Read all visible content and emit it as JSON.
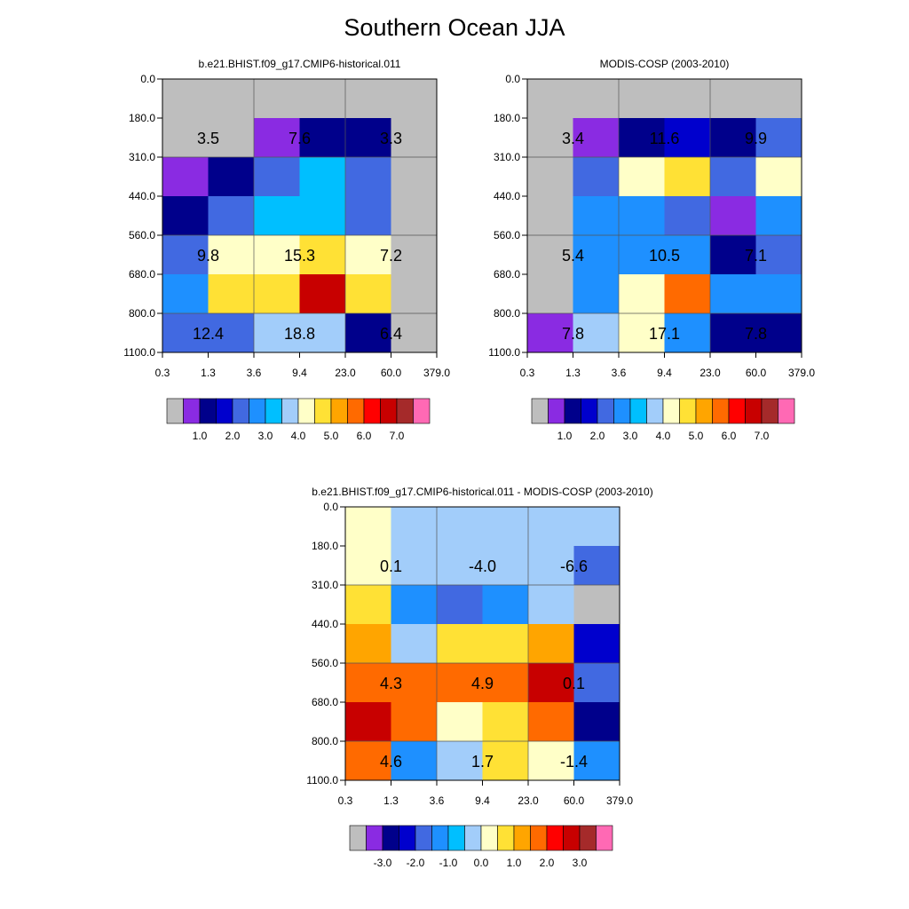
{
  "title": "Southern Ocean JJA",
  "colors": {
    "cb_abs": [
      "#bebebe",
      "#8a2be2",
      "#00008b",
      "#0000cd",
      "#4169e1",
      "#1e90ff",
      "#00bfff",
      "#a2cdfa",
      "#ffffc8",
      "#ffe135",
      "#ffa500",
      "#ff6a00",
      "#ff0000",
      "#c80000",
      "#a52a2a",
      "#ff69b4"
    ],
    "cb_diff": [
      "#bebebe",
      "#8a2be2",
      "#00008b",
      "#0000cd",
      "#4169e1",
      "#1e90ff",
      "#00bfff",
      "#a2cdfa",
      "#ffffc8",
      "#ffe135",
      "#ffa500",
      "#ff6a00",
      "#ff0000",
      "#c80000",
      "#a52a2a",
      "#ff69b4"
    ]
  },
  "chart_data": [
    {
      "type": "heatmap",
      "id": "model",
      "title": "b.e21.BHIST.f09_g17.CMIP6-historical.011",
      "x_ticks": [
        "0.3",
        "1.3",
        "3.6",
        "9.4",
        "23.0",
        "60.0",
        "379.0"
      ],
      "y_ticks": [
        "0.0",
        "180.0",
        "310.0",
        "440.0",
        "560.0",
        "680.0",
        "800.0",
        "1100.0"
      ],
      "cells": [
        [
          0,
          0,
          0,
          0,
          0,
          0
        ],
        [
          0,
          0,
          1,
          2,
          2,
          0
        ],
        [
          1,
          2,
          4,
          6,
          4,
          0
        ],
        [
          2,
          4,
          6,
          6,
          4,
          0
        ],
        [
          4,
          8,
          8,
          9,
          8,
          0
        ],
        [
          5,
          9,
          9,
          13,
          9,
          0
        ],
        [
          4,
          4,
          7,
          7,
          2,
          0
        ]
      ],
      "labels": [
        {
          "text": "3.5",
          "col": 0,
          "row": 1
        },
        {
          "text": "7.6",
          "col": 2,
          "row": 1
        },
        {
          "text": "3.3",
          "col": 4,
          "row": 1
        },
        {
          "text": "9.8",
          "col": 0,
          "row": 4
        },
        {
          "text": "15.3",
          "col": 2,
          "row": 4
        },
        {
          "text": "7.2",
          "col": 4,
          "row": 4
        },
        {
          "text": "12.4",
          "col": 0,
          "row": 6
        },
        {
          "text": "18.8",
          "col": 2,
          "row": 6
        },
        {
          "text": "6.4",
          "col": 4,
          "row": 6
        }
      ],
      "colorbar_labels": [
        "1.0",
        "2.0",
        "3.0",
        "4.0",
        "5.0",
        "6.0",
        "7.0"
      ]
    },
    {
      "type": "heatmap",
      "id": "obs",
      "title": "MODIS-COSP (2003-2010)",
      "x_ticks": [
        "0.3",
        "1.3",
        "3.6",
        "9.4",
        "23.0",
        "60.0",
        "379.0"
      ],
      "y_ticks": [
        "0.0",
        "180.0",
        "310.0",
        "440.0",
        "560.0",
        "680.0",
        "800.0",
        "1100.0"
      ],
      "cells": [
        [
          0,
          0,
          0,
          0,
          0,
          0
        ],
        [
          0,
          1,
          2,
          3,
          2,
          4
        ],
        [
          0,
          4,
          8,
          9,
          4,
          8
        ],
        [
          0,
          5,
          5,
          4,
          1,
          5
        ],
        [
          0,
          5,
          5,
          5,
          2,
          4
        ],
        [
          0,
          5,
          8,
          11,
          5,
          5
        ],
        [
          1,
          7,
          8,
          5,
          2,
          2
        ]
      ],
      "labels": [
        {
          "text": "3.4",
          "col": 0,
          "row": 1
        },
        {
          "text": "11.6",
          "col": 2,
          "row": 1
        },
        {
          "text": "9.9",
          "col": 4,
          "row": 1
        },
        {
          "text": "5.4",
          "col": 0,
          "row": 4
        },
        {
          "text": "10.5",
          "col": 2,
          "row": 4
        },
        {
          "text": "7.1",
          "col": 4,
          "row": 4
        },
        {
          "text": "7.8",
          "col": 0,
          "row": 6
        },
        {
          "text": "17.1",
          "col": 2,
          "row": 6
        },
        {
          "text": "7.8",
          "col": 4,
          "row": 6
        }
      ],
      "colorbar_labels": [
        "1.0",
        "2.0",
        "3.0",
        "4.0",
        "5.0",
        "6.0",
        "7.0"
      ]
    },
    {
      "type": "heatmap",
      "id": "diff",
      "title": "b.e21.BHIST.f09_g17.CMIP6-historical.011 - MODIS-COSP (2003-2010)",
      "x_ticks": [
        "0.3",
        "1.3",
        "3.6",
        "9.4",
        "23.0",
        "60.0",
        "379.0"
      ],
      "y_ticks": [
        "0.0",
        "180.0",
        "310.0",
        "440.0",
        "560.0",
        "680.0",
        "800.0",
        "1100.0"
      ],
      "cells": [
        [
          8,
          7,
          7,
          7,
          7,
          7
        ],
        [
          8,
          7,
          7,
          7,
          7,
          4
        ],
        [
          9,
          5,
          4,
          5,
          7,
          0
        ],
        [
          10,
          7,
          9,
          9,
          10,
          3
        ],
        [
          11,
          11,
          11,
          11,
          13,
          4
        ],
        [
          13,
          11,
          8,
          9,
          11,
          2
        ],
        [
          11,
          5,
          7,
          9,
          8,
          5
        ]
      ],
      "labels": [
        {
          "text": "0.1",
          "col": 0,
          "row": 1
        },
        {
          "text": "-4.0",
          "col": 2,
          "row": 1
        },
        {
          "text": "-6.6",
          "col": 4,
          "row": 1
        },
        {
          "text": "4.3",
          "col": 0,
          "row": 4
        },
        {
          "text": "4.9",
          "col": 2,
          "row": 4
        },
        {
          "text": "0.1",
          "col": 4,
          "row": 4
        },
        {
          "text": "4.6",
          "col": 0,
          "row": 6
        },
        {
          "text": "1.7",
          "col": 2,
          "row": 6
        },
        {
          "text": "-1.4",
          "col": 4,
          "row": 6
        }
      ],
      "colorbar_labels": [
        "-3.0",
        "-2.0",
        "-1.0",
        "0.0",
        "1.0",
        "2.0",
        "3.0"
      ]
    }
  ]
}
